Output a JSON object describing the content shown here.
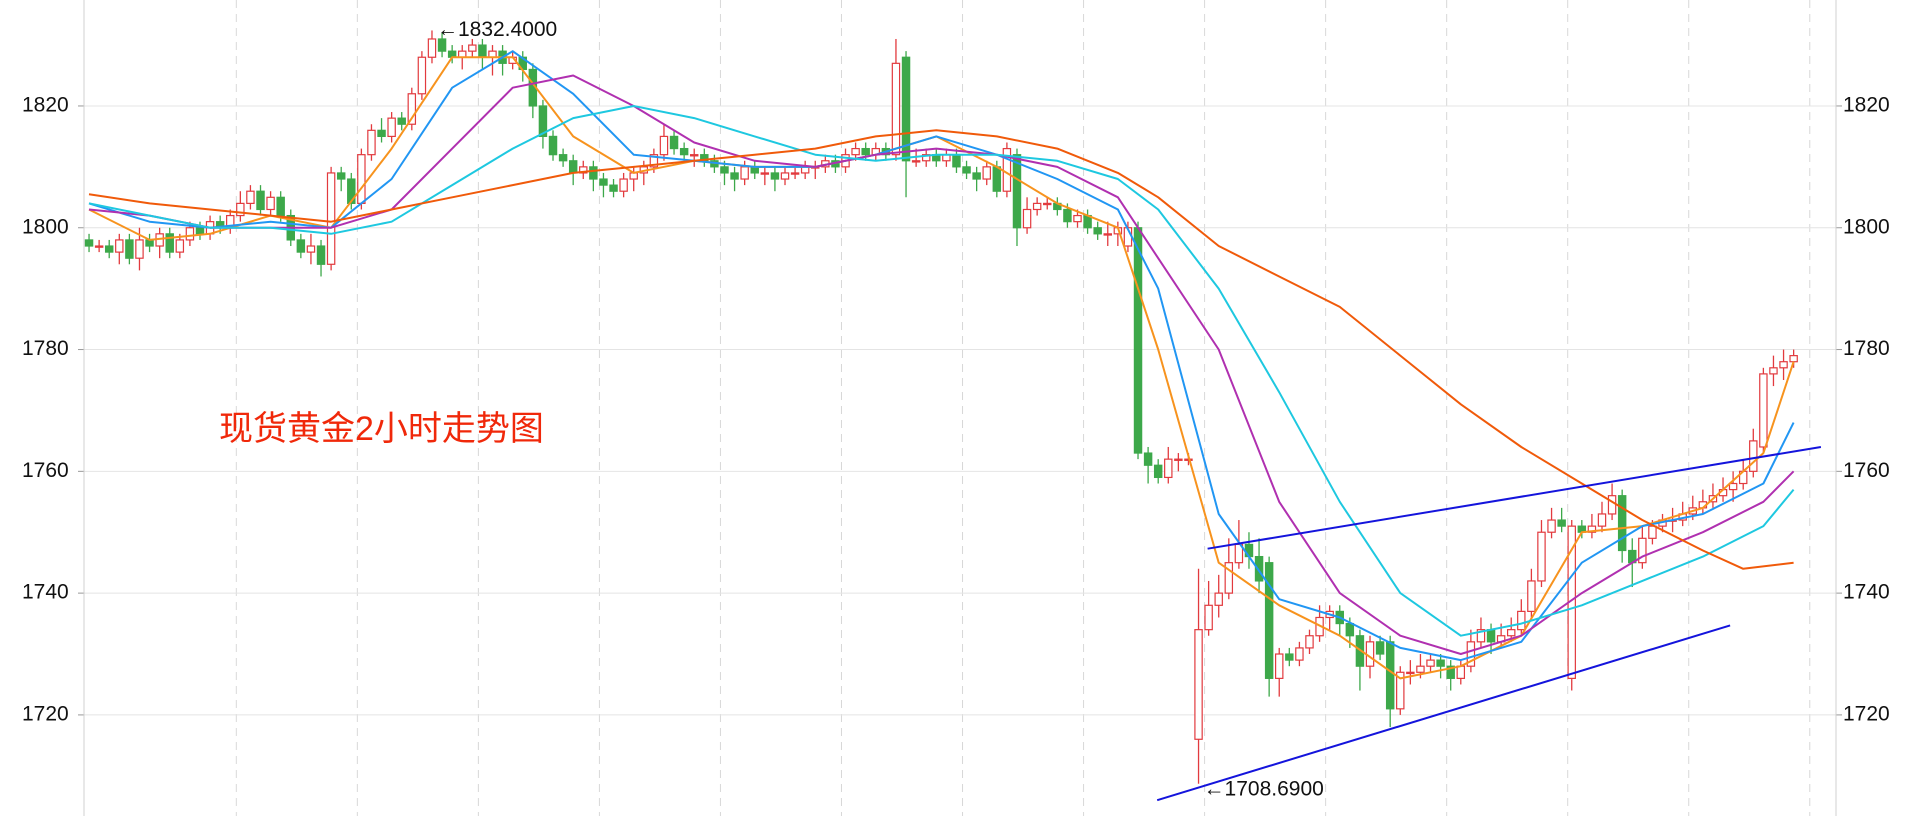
{
  "chart_data": {
    "type": "candlestick",
    "title": "现货黄金2小时走势图",
    "title_color": "#f0280a",
    "high_label": "←1832.4000",
    "low_label": "←1708.6900",
    "up_color": "#e23a3e",
    "down_color": "#3da84a",
    "xlim": [
      -0.5,
      173.2
    ],
    "ylim": [
      1703.4,
      1837.4
    ],
    "yticks": [
      1720,
      1740,
      1760,
      1780,
      1800,
      1820
    ],
    "grid": true,
    "ohlc": [
      [
        1798,
        1799,
        1796,
        1797
      ],
      [
        1797,
        1798,
        1796,
        1797
      ],
      [
        1797,
        1798,
        1795,
        1796
      ],
      [
        1796,
        1799,
        1794,
        1798
      ],
      [
        1798,
        1799,
        1794,
        1795
      ],
      [
        1795,
        1800,
        1793,
        1798
      ],
      [
        1798,
        1799,
        1796,
        1797
      ],
      [
        1797,
        1800,
        1795,
        1799
      ],
      [
        1799,
        1800,
        1795,
        1796
      ],
      [
        1796,
        1799,
        1795,
        1798
      ],
      [
        1798,
        1801,
        1797,
        1800
      ],
      [
        1800,
        1801,
        1798,
        1799
      ],
      [
        1799,
        1802,
        1798,
        1801
      ],
      [
        1801,
        1802,
        1799,
        1800
      ],
      [
        1800,
        1803,
        1799,
        1802
      ],
      [
        1802,
        1806,
        1801,
        1804
      ],
      [
        1804,
        1807,
        1803,
        1806
      ],
      [
        1806,
        1807,
        1802,
        1803
      ],
      [
        1803,
        1806,
        1802,
        1805
      ],
      [
        1805,
        1806,
        1801,
        1802
      ],
      [
        1802,
        1803,
        1797,
        1798
      ],
      [
        1798,
        1799,
        1795,
        1796
      ],
      [
        1796,
        1799,
        1794,
        1797
      ],
      [
        1797,
        1798,
        1792,
        1794
      ],
      [
        1794,
        1810,
        1793,
        1809
      ],
      [
        1809,
        1810,
        1806,
        1808
      ],
      [
        1808,
        1809,
        1803,
        1804
      ],
      [
        1804,
        1813,
        1803,
        1812
      ],
      [
        1812,
        1817,
        1811,
        1816
      ],
      [
        1816,
        1818,
        1814,
        1815
      ],
      [
        1815,
        1819,
        1814,
        1818
      ],
      [
        1818,
        1819,
        1816,
        1817
      ],
      [
        1817,
        1823,
        1816,
        1822
      ],
      [
        1822,
        1829,
        1821,
        1828
      ],
      [
        1828,
        1832.4,
        1827,
        1831
      ],
      [
        1831,
        1832,
        1828,
        1829
      ],
      [
        1829,
        1830,
        1827,
        1828
      ],
      [
        1828,
        1830,
        1826,
        1829
      ],
      [
        1829,
        1831,
        1828,
        1830
      ],
      [
        1830,
        1831,
        1826,
        1828
      ],
      [
        1828,
        1830,
        1825,
        1829
      ],
      [
        1829,
        1830,
        1825,
        1827
      ],
      [
        1827,
        1829,
        1826,
        1828
      ],
      [
        1828,
        1829,
        1824,
        1826
      ],
      [
        1826,
        1827,
        1818,
        1820
      ],
      [
        1820,
        1821,
        1813,
        1815
      ],
      [
        1815,
        1816,
        1811,
        1812
      ],
      [
        1812,
        1813,
        1810,
        1811
      ],
      [
        1811,
        1812,
        1807,
        1809
      ],
      [
        1809,
        1811,
        1808,
        1810
      ],
      [
        1810,
        1811,
        1806,
        1808
      ],
      [
        1808,
        1809,
        1805,
        1807
      ],
      [
        1807,
        1808,
        1805,
        1806
      ],
      [
        1806,
        1809,
        1805,
        1808
      ],
      [
        1808,
        1810,
        1806,
        1809
      ],
      [
        1809,
        1811,
        1807,
        1810
      ],
      [
        1810,
        1813,
        1809,
        1812
      ],
      [
        1812,
        1817,
        1811,
        1815
      ],
      [
        1815,
        1816,
        1812,
        1813
      ],
      [
        1813,
        1814,
        1811,
        1812
      ],
      [
        1812,
        1813,
        1810,
        1812
      ],
      [
        1812,
        1813,
        1810,
        1811
      ],
      [
        1811,
        1812,
        1809,
        1810
      ],
      [
        1810,
        1811,
        1807,
        1809
      ],
      [
        1809,
        1810,
        1806,
        1808
      ],
      [
        1808,
        1811,
        1807,
        1810
      ],
      [
        1810,
        1811,
        1808,
        1809
      ],
      [
        1809,
        1810,
        1807,
        1809
      ],
      [
        1809,
        1810,
        1806,
        1808
      ],
      [
        1808,
        1810,
        1807,
        1809
      ],
      [
        1809,
        1810,
        1808,
        1809
      ],
      [
        1809,
        1811,
        1808,
        1810
      ],
      [
        1810,
        1811,
        1808,
        1810
      ],
      [
        1810,
        1812,
        1809,
        1811
      ],
      [
        1811,
        1812,
        1809,
        1810
      ],
      [
        1810,
        1813,
        1809,
        1812
      ],
      [
        1812,
        1814,
        1811,
        1813
      ],
      [
        1813,
        1814,
        1811,
        1812
      ],
      [
        1812,
        1814,
        1811,
        1813
      ],
      [
        1813,
        1814,
        1811,
        1812
      ],
      [
        1812,
        1831,
        1811,
        1827
      ],
      [
        1828,
        1829,
        1805,
        1811
      ],
      [
        1811,
        1813,
        1810,
        1811
      ],
      [
        1811,
        1813,
        1810,
        1812
      ],
      [
        1812,
        1813,
        1810,
        1811
      ],
      [
        1811,
        1813,
        1810,
        1812
      ],
      [
        1812,
        1813,
        1809,
        1810
      ],
      [
        1810,
        1811,
        1808,
        1809
      ],
      [
        1809,
        1810,
        1806,
        1808
      ],
      [
        1808,
        1811,
        1807,
        1810
      ],
      [
        1810,
        1811,
        1805,
        1806
      ],
      [
        1806,
        1814,
        1805,
        1813
      ],
      [
        1812,
        1813,
        1797,
        1800
      ],
      [
        1800,
        1805,
        1799,
        1803
      ],
      [
        1803,
        1805,
        1802,
        1804
      ],
      [
        1804,
        1805,
        1803,
        1804
      ],
      [
        1804,
        1805,
        1802,
        1803
      ],
      [
        1803,
        1804,
        1800,
        1801
      ],
      [
        1801,
        1803,
        1800,
        1802
      ],
      [
        1802,
        1803,
        1799,
        1800
      ],
      [
        1800,
        1801,
        1798,
        1799
      ],
      [
        1799,
        1801,
        1797,
        1799
      ],
      [
        1799,
        1801,
        1797,
        1800
      ],
      [
        1797,
        1801,
        1796,
        1800
      ],
      [
        1800,
        1801,
        1762,
        1763
      ],
      [
        1763,
        1764,
        1758,
        1761
      ],
      [
        1761,
        1762,
        1758,
        1759
      ],
      [
        1759,
        1764,
        1758,
        1762
      ],
      [
        1762,
        1763,
        1760,
        1762
      ],
      [
        1762,
        1763,
        1761,
        1762
      ],
      [
        1716,
        1744,
        1708.69,
        1734
      ],
      [
        1734,
        1742,
        1733,
        1738
      ],
      [
        1738,
        1743,
        1736,
        1740
      ],
      [
        1740,
        1749,
        1739,
        1745
      ],
      [
        1745,
        1752,
        1744,
        1748
      ],
      [
        1748,
        1750,
        1744,
        1746
      ],
      [
        1746,
        1749,
        1740,
        1742
      ],
      [
        1745,
        1746,
        1723,
        1726
      ],
      [
        1726,
        1731,
        1723,
        1730
      ],
      [
        1730,
        1731,
        1728,
        1729
      ],
      [
        1729,
        1732,
        1728,
        1731
      ],
      [
        1731,
        1734,
        1730,
        1733
      ],
      [
        1733,
        1738,
        1732,
        1736
      ],
      [
        1736,
        1738,
        1734,
        1737
      ],
      [
        1737,
        1738,
        1733,
        1735
      ],
      [
        1735,
        1736,
        1731,
        1733
      ],
      [
        1733,
        1734,
        1724,
        1728
      ],
      [
        1728,
        1733,
        1726,
        1732
      ],
      [
        1732,
        1733,
        1729,
        1730
      ],
      [
        1732,
        1733,
        1718,
        1721
      ],
      [
        1721,
        1728,
        1720,
        1727
      ],
      [
        1727,
        1729,
        1725,
        1727
      ],
      [
        1727,
        1730,
        1726,
        1728
      ],
      [
        1728,
        1730,
        1727,
        1729
      ],
      [
        1729,
        1730,
        1726,
        1728
      ],
      [
        1728,
        1729,
        1724,
        1726
      ],
      [
        1726,
        1729,
        1725,
        1728
      ],
      [
        1728,
        1734,
        1727,
        1732
      ],
      [
        1732,
        1736,
        1731,
        1734
      ],
      [
        1734,
        1735,
        1730,
        1732
      ],
      [
        1732,
        1735,
        1731,
        1733
      ],
      [
        1733,
        1736,
        1732,
        1734
      ],
      [
        1734,
        1739,
        1733,
        1737
      ],
      [
        1737,
        1744,
        1736,
        1742
      ],
      [
        1742,
        1752,
        1741,
        1750
      ],
      [
        1750,
        1754,
        1749,
        1752
      ],
      [
        1752,
        1754,
        1750,
        1751
      ],
      [
        1726,
        1752,
        1724,
        1751
      ],
      [
        1751,
        1752,
        1749,
        1750
      ],
      [
        1750,
        1753,
        1749,
        1751
      ],
      [
        1751,
        1755,
        1750,
        1753
      ],
      [
        1753,
        1758,
        1752,
        1756
      ],
      [
        1756,
        1757,
        1745,
        1747
      ],
      [
        1747,
        1749,
        1741,
        1745
      ],
      [
        1745,
        1751,
        1744,
        1749
      ],
      [
        1749,
        1752,
        1748,
        1751
      ],
      [
        1751,
        1753,
        1750,
        1752
      ],
      [
        1752,
        1754,
        1750,
        1752
      ],
      [
        1752,
        1755,
        1751,
        1753
      ],
      [
        1753,
        1756,
        1752,
        1754
      ],
      [
        1754,
        1757,
        1753,
        1755
      ],
      [
        1755,
        1758,
        1754,
        1756
      ],
      [
        1756,
        1759,
        1755,
        1757
      ],
      [
        1757,
        1760,
        1755,
        1758
      ],
      [
        1758,
        1762,
        1757,
        1760
      ],
      [
        1760,
        1767,
        1759,
        1765
      ],
      [
        1764,
        1777,
        1763,
        1776
      ],
      [
        1776,
        1779,
        1774,
        1777
      ],
      [
        1777,
        1780,
        1775,
        1778
      ],
      [
        1778,
        1780,
        1777,
        1779
      ]
    ],
    "series": [
      {
        "color": "#f7931e",
        "x": [
          0,
          6,
          12,
          18,
          24,
          30,
          36,
          42,
          48,
          54,
          60,
          66,
          72,
          78,
          84,
          90,
          96,
          102,
          106,
          112,
          118,
          124,
          130,
          136,
          142,
          148,
          154,
          160,
          166,
          169
        ],
        "values": [
          1803,
          1798,
          1799,
          1802,
          1800,
          1813,
          1828,
          1828,
          1815,
          1809,
          1811,
          1810,
          1810,
          1812,
          1815,
          1810,
          1804,
          1800,
          1780,
          1745,
          1738,
          1733,
          1726,
          1728,
          1733,
          1750,
          1751,
          1754,
          1763,
          1778
        ]
      },
      {
        "color": "#2196f3",
        "x": [
          0,
          6,
          12,
          18,
          24,
          30,
          36,
          42,
          48,
          54,
          60,
          66,
          72,
          78,
          84,
          90,
          96,
          102,
          106,
          112,
          118,
          124,
          130,
          136,
          142,
          148,
          154,
          160,
          166,
          169
        ],
        "values": [
          1804,
          1801,
          1800,
          1801,
          1800,
          1808,
          1823,
          1829,
          1822,
          1812,
          1811,
          1810,
          1810,
          1812,
          1815,
          1812,
          1808,
          1803,
          1790,
          1753,
          1739,
          1736,
          1731,
          1729,
          1732,
          1745,
          1751,
          1753,
          1758,
          1768
        ]
      },
      {
        "color": "#b030b0",
        "x": [
          0,
          6,
          12,
          18,
          24,
          30,
          36,
          42,
          48,
          54,
          60,
          66,
          72,
          78,
          84,
          90,
          96,
          102,
          106,
          112,
          118,
          124,
          130,
          136,
          142,
          148,
          154,
          160,
          166,
          169
        ],
        "values": [
          1803,
          1802,
          1800,
          1800,
          1800,
          1803,
          1813,
          1823,
          1825,
          1820,
          1814,
          1811,
          1810,
          1812,
          1813,
          1812,
          1810,
          1805,
          1795,
          1780,
          1755,
          1740,
          1733,
          1730,
          1733,
          1740,
          1746,
          1750,
          1755,
          1760
        ]
      },
      {
        "color": "#1ec8e0",
        "x": [
          0,
          6,
          12,
          18,
          24,
          30,
          36,
          42,
          48,
          54,
          60,
          66,
          72,
          78,
          84,
          90,
          96,
          102,
          106,
          112,
          118,
          124,
          130,
          136,
          142,
          148,
          154,
          160,
          166,
          169
        ],
        "values": [
          1804,
          1802,
          1800,
          1800,
          1799,
          1801,
          1807,
          1813,
          1818,
          1820,
          1818,
          1815,
          1812,
          1811,
          1812,
          1812,
          1811,
          1808,
          1803,
          1790,
          1773,
          1755,
          1740,
          1733,
          1735,
          1738,
          1742,
          1746,
          1751,
          1757
        ]
      },
      {
        "color": "#f05a0a",
        "x": [
          0,
          6,
          12,
          18,
          24,
          30,
          36,
          42,
          48,
          54,
          60,
          66,
          72,
          78,
          84,
          90,
          96,
          102,
          106,
          112,
          118,
          124,
          130,
          136,
          142,
          148,
          154,
          160,
          164,
          169
        ],
        "values": [
          1805.5,
          1804,
          1803,
          1802,
          1801,
          1803,
          1805,
          1807,
          1809,
          1810,
          1811,
          1812,
          1813,
          1815,
          1816,
          1815,
          1813,
          1809,
          1805,
          1797,
          1792,
          1787,
          1779,
          1771,
          1764,
          1758,
          1752,
          1747,
          1744,
          1745
        ]
      }
    ],
    "trendlines": [
      {
        "color": "#1414dc",
        "x": [
          110.9,
          171.7
        ],
        "values": [
          1747.3,
          1764
        ]
      },
      {
        "color": "#1414dc",
        "x": [
          105.9,
          162.7
        ],
        "values": [
          1706,
          1734.7
        ]
      }
    ]
  }
}
